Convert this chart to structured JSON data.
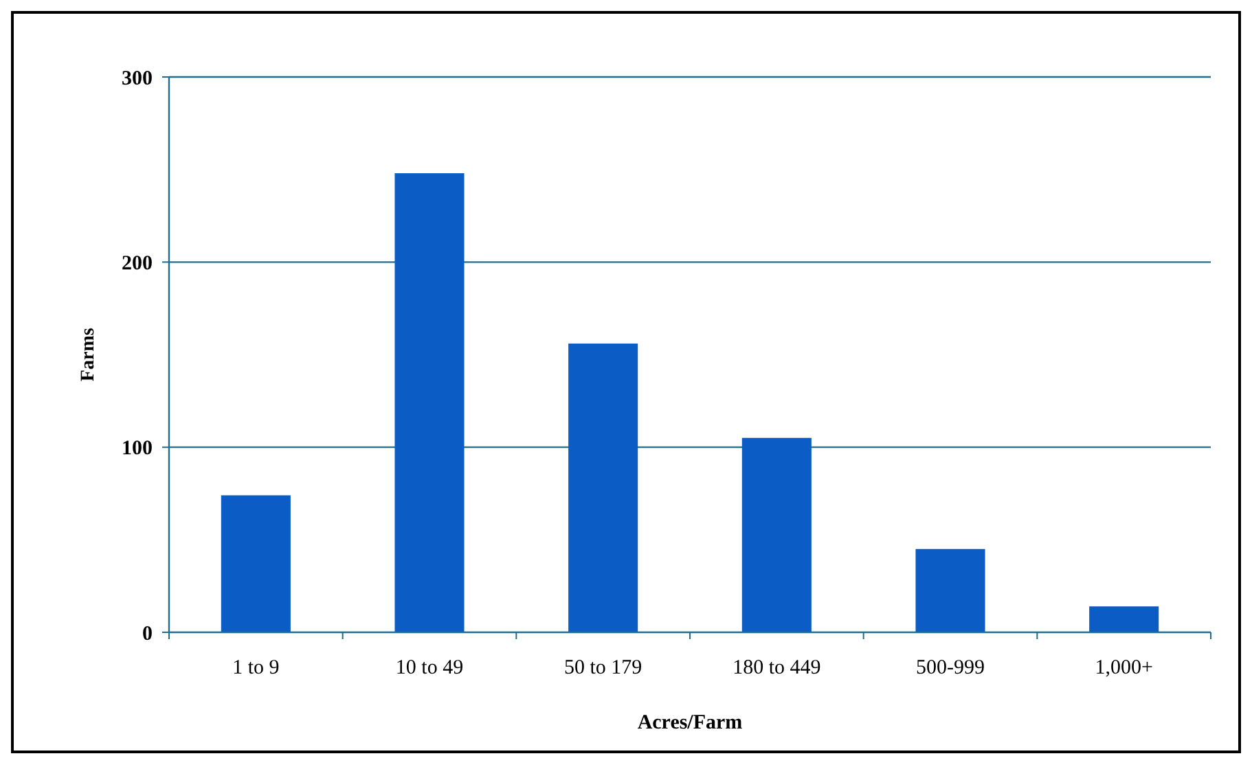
{
  "chart_data": {
    "type": "bar",
    "xlabel": "Acres/Farm",
    "ylabel": "Farms",
    "categories": [
      "1 to 9",
      "10 to 49",
      "50 to 179",
      "180 to 449",
      "500-999",
      "1,000+"
    ],
    "values": [
      74,
      248,
      156,
      105,
      45,
      14
    ],
    "color": "#0b5cc4",
    "ylim": [
      0,
      300
    ],
    "yticks": [
      0,
      100,
      200,
      300
    ],
    "grid": "y"
  }
}
